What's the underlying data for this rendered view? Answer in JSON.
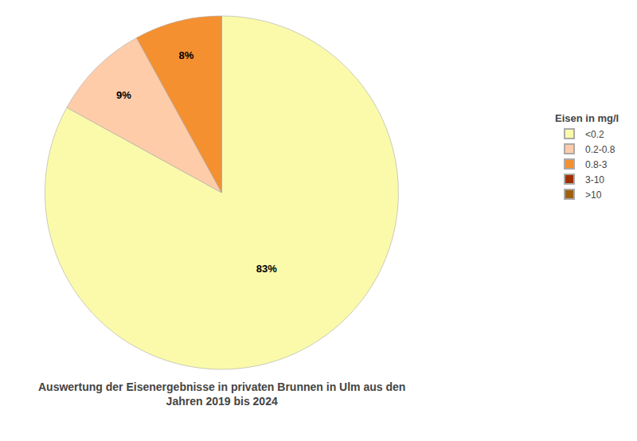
{
  "chart_data": {
    "type": "pie",
    "title": "Auswertung der Eisenergebnisse in privaten Brunnen in Ulm aus den\nJahren 2019 bis 2024",
    "legend_title": "Eisen in mg/l",
    "categories": [
      "<0.2",
      "0.2-0.8",
      "0.8-3",
      "3-10",
      ">10"
    ],
    "values": [
      83,
      9,
      8,
      0,
      0
    ],
    "value_labels": [
      "83%",
      "9%",
      "8%",
      null,
      null
    ],
    "colors": [
      "#FAFAAA",
      "#FFCCAA",
      "#F59030",
      "#A03000",
      "#A06010"
    ],
    "legend": "right"
  }
}
